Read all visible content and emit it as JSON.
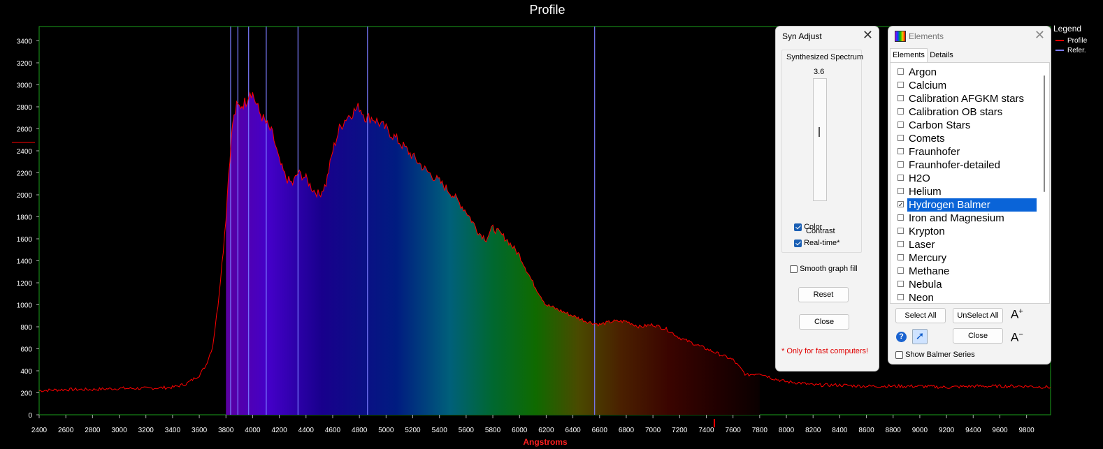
{
  "chart_data": {
    "type": "line",
    "title": "Profile",
    "xlabel": "Angstroms",
    "ylabel": "",
    "xlim": [
      2400,
      9980
    ],
    "ylim": [
      0,
      3530
    ],
    "x_ticks": [
      2400,
      2600,
      2800,
      3000,
      3200,
      3400,
      3600,
      3800,
      4000,
      4200,
      4400,
      4600,
      4800,
      5000,
      5200,
      5400,
      5600,
      5800,
      6000,
      6200,
      6400,
      6600,
      6800,
      7000,
      7200,
      7400,
      7600,
      7800,
      8000,
      8200,
      8400,
      8600,
      8800,
      9000,
      9200,
      9400,
      9600,
      9800
    ],
    "y_ticks": [
      0,
      200,
      400,
      600,
      800,
      1000,
      1200,
      1400,
      1600,
      1800,
      2000,
      2200,
      2400,
      2600,
      2800,
      3000,
      3200,
      3400
    ],
    "legend": {
      "title": "Legend",
      "position": "top-right",
      "entries": [
        {
          "name": "Profile",
          "color": "#ff0000"
        },
        {
          "name": "Refer.",
          "color": "#7b7bff"
        }
      ]
    },
    "reference_lines": [
      3835,
      3889,
      3970,
      4102,
      4340,
      4861,
      6563
    ],
    "series": [
      {
        "name": "Profile",
        "color": "#ff0000",
        "x": [
          2400,
          2600,
          2800,
          3000,
          3200,
          3400,
          3500,
          3600,
          3650,
          3700,
          3740,
          3780,
          3800,
          3820,
          3850,
          3880,
          3900,
          3950,
          3980,
          4000,
          4050,
          4100,
          4150,
          4200,
          4250,
          4300,
          4340,
          4400,
          4450,
          4500,
          4550,
          4600,
          4650,
          4700,
          4750,
          4800,
          4850,
          4900,
          4950,
          5000,
          5100,
          5200,
          5300,
          5400,
          5500,
          5600,
          5700,
          5750,
          5800,
          5850,
          5900,
          6000,
          6100,
          6200,
          6300,
          6400,
          6500,
          6600,
          6700,
          6800,
          6900,
          7000,
          7100,
          7200,
          7300,
          7400,
          7500,
          7600,
          7700,
          7800,
          7900,
          8000,
          8100,
          8200,
          8400,
          8600,
          8800,
          9000,
          9200,
          9400,
          9600,
          9800,
          9980
        ],
        "y": [
          220,
          230,
          230,
          240,
          240,
          250,
          280,
          360,
          450,
          620,
          1000,
          1500,
          1800,
          2200,
          2650,
          2800,
          2800,
          2850,
          2950,
          2920,
          2750,
          2650,
          2550,
          2300,
          2150,
          2100,
          2200,
          2150,
          2050,
          2000,
          2100,
          2400,
          2600,
          2700,
          2750,
          2800,
          2700,
          2700,
          2650,
          2600,
          2480,
          2350,
          2220,
          2120,
          2000,
          1850,
          1650,
          1600,
          1700,
          1650,
          1600,
          1450,
          1200,
          1000,
          950,
          900,
          850,
          820,
          850,
          850,
          800,
          820,
          780,
          700,
          650,
          600,
          550,
          500,
          360,
          380,
          330,
          300,
          290,
          270,
          270,
          260,
          260,
          260,
          250,
          260,
          260,
          260,
          250
        ]
      }
    ]
  },
  "syn_adjust": {
    "title": "Syn Adjust",
    "group_label": "Synthesized Spectrum",
    "slider_value": "3.6",
    "slider_level": 0.43,
    "contrast_label": "Contrast",
    "color_label": "Color",
    "color_checked": true,
    "realtime_label": "Real-time*",
    "realtime_checked": true,
    "smooth_label": "Smooth graph fill",
    "smooth_checked": false,
    "reset_label": "Reset",
    "close_label": "Close",
    "note": "* Only for fast computers!"
  },
  "elements": {
    "title": "Elements",
    "tabs": [
      "Elements",
      "Details"
    ],
    "active_tab": 0,
    "items": [
      {
        "label": "Argon",
        "checked": false
      },
      {
        "label": "Calcium",
        "checked": false
      },
      {
        "label": "Calibration AFGKM stars",
        "checked": false
      },
      {
        "label": "Calibration OB stars",
        "checked": false
      },
      {
        "label": "Carbon Stars",
        "checked": false
      },
      {
        "label": "Comets",
        "checked": false
      },
      {
        "label": "Fraunhofer",
        "checked": false
      },
      {
        "label": "Fraunhofer-detailed",
        "checked": false
      },
      {
        "label": "H2O",
        "checked": false
      },
      {
        "label": "Helium",
        "checked": false
      },
      {
        "label": "Hydrogen Balmer",
        "checked": true
      },
      {
        "label": "Iron and Magnesium",
        "checked": false
      },
      {
        "label": "Krypton",
        "checked": false
      },
      {
        "label": "Laser",
        "checked": false
      },
      {
        "label": "Mercury",
        "checked": false
      },
      {
        "label": "Methane",
        "checked": false
      },
      {
        "label": "Nebula",
        "checked": false
      },
      {
        "label": "Neon",
        "checked": false
      }
    ],
    "select_all_label": "Select All",
    "unselect_all_label": "UnSelect All",
    "font_up_label": "A+",
    "font_down_label": "A−",
    "close_label": "Close",
    "show_balmer_label": "Show Balmer Series",
    "show_balmer_checked": false,
    "help_icon": "question-icon",
    "link_icon": "arrow-icon"
  }
}
